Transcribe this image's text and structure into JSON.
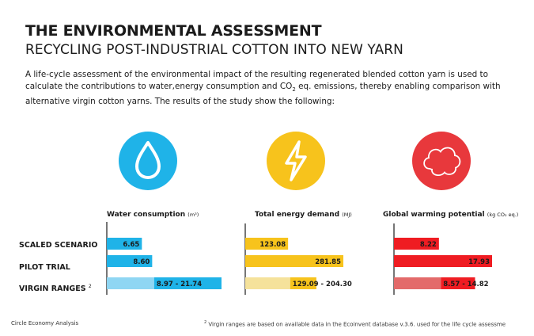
{
  "header": {
    "title": "THE ENVIRONMENTAL ASSESSMENT",
    "subtitle": "RECYCLING POST-INDUSTRIAL COTTON INTO NEW YARN"
  },
  "intro": {
    "line1": "A life-cycle assessment of the environmental impact of the resulting regenerated blended cotton yarn is used to",
    "line2a": "calculate the contributions to water,energy consumption and CO",
    "line2sub": "2",
    "line2b": " eq. emissions, thereby enabling comparison with",
    "line3": "alternative virgin cotton yarns. The results of the study show the following:"
  },
  "icons": {
    "water": {
      "icon": "water-drop-icon",
      "color": "#1fb3e8"
    },
    "energy": {
      "icon": "lightning-bolt-icon",
      "color": "#f7c31c"
    },
    "warming": {
      "icon": "cloud-icon",
      "color": "#e8383c"
    }
  },
  "rows": {
    "scaled": "SCALED SCENARIO",
    "pilot": "PILOT TRIAL",
    "virgin": "VIRGIN RANGES",
    "virgin_sup": "2"
  },
  "chart_data": [
    {
      "type": "bar",
      "title": "Water consumption",
      "unit": "(m³)",
      "categories": [
        "SCALED SCENARIO",
        "PILOT TRIAL",
        "VIRGIN RANGES"
      ],
      "values": [
        6.65,
        8.6,
        [
          8.97,
          21.74
        ]
      ],
      "labels": [
        "6.65",
        "8.60",
        "8.97 - 21.74"
      ],
      "colors": [
        "#1fb3e8",
        "#1fb3e8",
        "#1fb3e8"
      ],
      "range_light_color": "#8fd6f3",
      "max": 21.74
    },
    {
      "type": "bar",
      "title": "Total energy demand",
      "unit": "(MJ)",
      "categories": [
        "SCALED SCENARIO",
        "PILOT TRIAL",
        "VIRGIN RANGES"
      ],
      "values": [
        123.08,
        281.85,
        [
          129.09,
          204.3
        ]
      ],
      "labels": [
        "123.08",
        "281.85",
        "129.09 - 204.30"
      ],
      "colors": [
        "#f7c31c",
        "#f7c31c",
        "#f7c31c"
      ],
      "range_light_color": "#f5e29b",
      "max": 281.85
    },
    {
      "type": "bar",
      "title": "Global warming potential",
      "unit": "(kg CO₂ eq.)",
      "categories": [
        "SCALED SCENARIO",
        "PILOT TRIAL",
        "VIRGIN RANGES"
      ],
      "values": [
        8.22,
        17.93,
        [
          8.57,
          14.82
        ]
      ],
      "labels": [
        "8.22",
        "17.93",
        "8.57 - 14.82"
      ],
      "colors": [
        "#ef1c22",
        "#ef1c22",
        "#ef1c22"
      ],
      "range_light_color": "#e36a6a",
      "max": 17.93
    }
  ],
  "footer": {
    "source": "Circle Economy Analysis",
    "footnote_sup": "2",
    "footnote": " Virgin ranges are based on available data in the Ecoinvent database v.3.6. used for the life cycle assessme"
  }
}
